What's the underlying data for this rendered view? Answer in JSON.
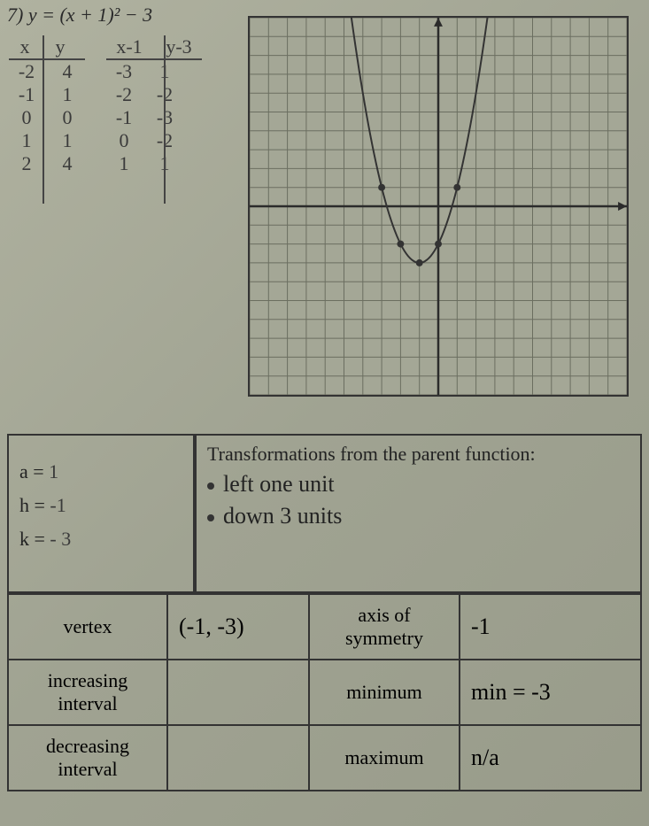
{
  "problem": {
    "number": "7)",
    "equation": "y = (x + 1)² − 3"
  },
  "t_tables": {
    "table1": {
      "headers": [
        "x",
        "y"
      ],
      "rows": [
        [
          "-2",
          "4"
        ],
        [
          "-1",
          "1"
        ],
        [
          "0",
          "0"
        ],
        [
          "1",
          "1"
        ],
        [
          "2",
          "4"
        ]
      ]
    },
    "table2": {
      "headers": [
        "x-1",
        "y-3"
      ],
      "rows": [
        [
          "-3",
          "1"
        ],
        [
          "-2",
          "-2"
        ],
        [
          "-1",
          "-3"
        ],
        [
          "0",
          "-2"
        ],
        [
          "1",
          "1"
        ]
      ]
    }
  },
  "graph": {
    "type": "scatter+curve",
    "xlim": [
      -10,
      10
    ],
    "ylim": [
      -10,
      10
    ],
    "tick_step": 1,
    "grid_color": "#6b6e60",
    "axis_color": "#2b2b2b",
    "background_color": "#a4a796",
    "curve_color": "#333333",
    "curve_width": 2,
    "point_color": "#333333",
    "point_radius": 4,
    "vertex": [
      -1,
      -3
    ],
    "points": [
      [
        -3,
        1
      ],
      [
        -2,
        -2
      ],
      [
        -1,
        -3
      ],
      [
        0,
        -2
      ],
      [
        1,
        1
      ]
    ],
    "arrows": true
  },
  "params": {
    "a_label": "a =",
    "a_value": "1",
    "h_label": "h =",
    "h_value": "-1",
    "k_label": "k =",
    "k_value": "- 3"
  },
  "transforms": {
    "heading": "Transformations from the parent function:",
    "bullets": [
      "left one unit",
      "down 3 units"
    ]
  },
  "answers": {
    "vertex_label": "vertex",
    "vertex_value": "(-1, -3)",
    "axis_label_1": "axis of",
    "axis_label_2": "symmetry",
    "axis_value": "-1",
    "inc_label_1": "increasing",
    "inc_label_2": "interval",
    "inc_value": "",
    "min_label": "minimum",
    "min_value": "min = -3",
    "dec_label_1": "decreasing",
    "dec_label_2": "interval",
    "dec_value": "",
    "max_label": "maximum",
    "max_value": "n/a"
  }
}
